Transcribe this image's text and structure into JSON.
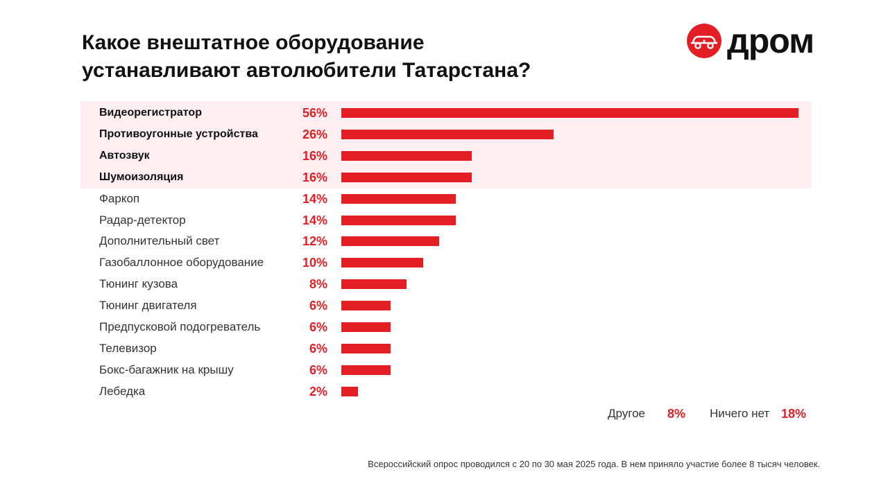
{
  "brand": {
    "name": "дром",
    "colors": {
      "accent": "#e31e24",
      "highlight": "#fdeff1",
      "text": "#111111"
    },
    "icon": "car-logo-icon"
  },
  "chart_data": {
    "type": "bar",
    "orientation": "horizontal",
    "title_lines": [
      "Какое внештатное оборудование",
      "устанавливают автолюбители Татарстана?"
    ],
    "xlim": [
      0,
      56
    ],
    "grid": false,
    "highlighted_count": 4,
    "items": [
      {
        "label": "Видеорегистратор",
        "value": 56,
        "display": "56%"
      },
      {
        "label": "Противоугонные устройства",
        "value": 26,
        "display": "26%"
      },
      {
        "label": "Автозвук",
        "value": 16,
        "display": "16%"
      },
      {
        "label": "Шумоизоляция",
        "value": 16,
        "display": "16%"
      },
      {
        "label": "Фаркоп",
        "value": 14,
        "display": "14%"
      },
      {
        "label": "Радар-детектор",
        "value": 14,
        "display": "14%"
      },
      {
        "label": "Дополнительный свет",
        "value": 12,
        "display": "12%"
      },
      {
        "label": "Газобаллонное оборудование",
        "value": 10,
        "display": "10%"
      },
      {
        "label": "Тюнинг кузова",
        "value": 8,
        "display": "8%"
      },
      {
        "label": "Тюнинг двигателя",
        "value": 6,
        "display": "6%"
      },
      {
        "label": "Предпусковой подогреватель",
        "value": 6,
        "display": "6%"
      },
      {
        "label": "Телевизор",
        "value": 6,
        "display": "6%"
      },
      {
        "label": "Бокс-багажник на крышу",
        "value": 6,
        "display": "6%"
      },
      {
        "label": "Лебедка",
        "value": 2,
        "display": "2%"
      }
    ],
    "extras": [
      {
        "label": "Другое",
        "value": 8,
        "display": "8%"
      },
      {
        "label": "Ничего нет",
        "value": 18,
        "display": "18%"
      }
    ]
  },
  "footnote": "Всероссийский опрос проводился с 20 по 30 мая 2025 года. В нем приняло участие более 8 тысяч человек."
}
